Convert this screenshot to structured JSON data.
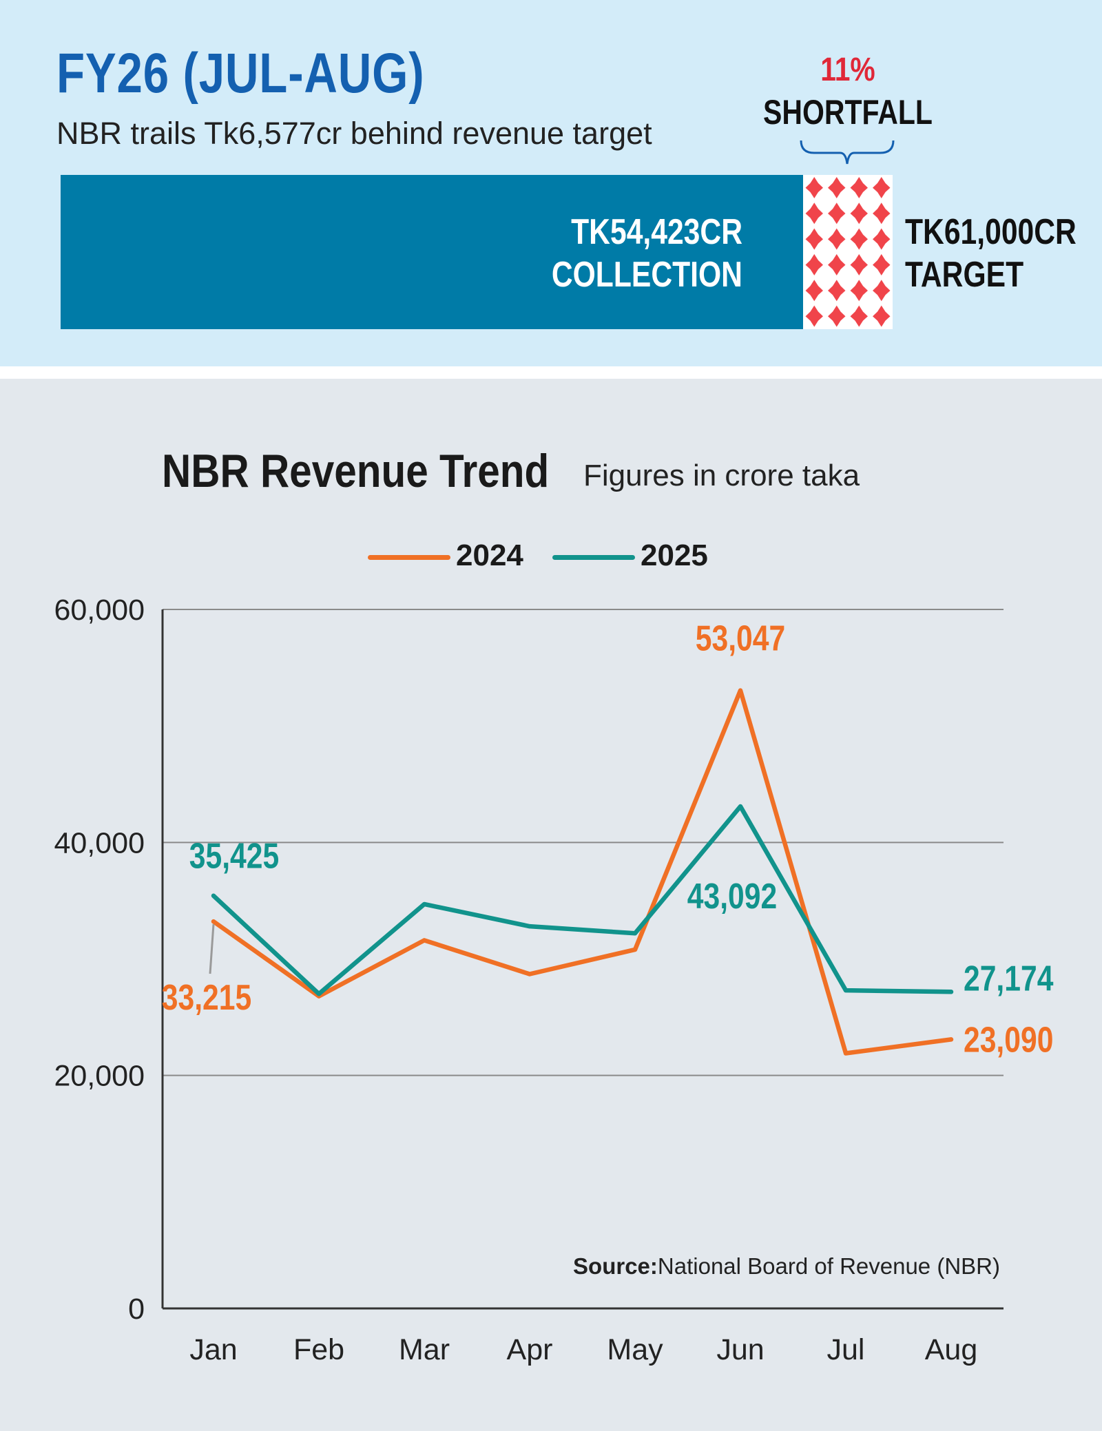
{
  "header": {
    "title": "FY26 (JUL-AUG)",
    "subtitle": "NBR trails Tk6,577cr behind revenue target",
    "collection_line1": "TK54,423CR",
    "collection_line2": "COLLECTION",
    "target_line1": "TK61,000CR",
    "target_line2": "TARGET",
    "shortfall_pct": "11%",
    "shortfall_label": "SHORTFALL",
    "collection_value": 54423,
    "target_value": 61000
  },
  "colors": {
    "collection_bar": "#007ba7",
    "shortfall_red": "#e02838",
    "series_2024": "#f07025",
    "series_2025": "#11938c",
    "title_blue": "#1460b0"
  },
  "chart_data": {
    "type": "line",
    "title": "NBR Revenue Trend",
    "subtitle": "Figures in crore taka",
    "categories": [
      "Jan",
      "Feb",
      "Mar",
      "Apr",
      "May",
      "Jun",
      "Jul",
      "Aug"
    ],
    "series": [
      {
        "name": "2024",
        "color": "#f07025",
        "values": [
          33215,
          26800,
          31600,
          28700,
          30800,
          53047,
          21900,
          23090
        ]
      },
      {
        "name": "2025",
        "color": "#11938c",
        "values": [
          35425,
          27000,
          34700,
          32800,
          32200,
          43092,
          27300,
          27174
        ]
      }
    ],
    "ylim": [
      0,
      60000
    ],
    "yticks": [
      0,
      20000,
      40000,
      60000
    ],
    "ytick_labels": [
      "0",
      "20,000",
      "40,000",
      "60,000"
    ],
    "grid": true,
    "legend": "top-center",
    "annotations": [
      {
        "series": "2025",
        "category": "Jan",
        "text": "35,425"
      },
      {
        "series": "2024",
        "category": "Jan",
        "text": "33,215"
      },
      {
        "series": "2024",
        "category": "Jun",
        "text": "53,047"
      },
      {
        "series": "2025",
        "category": "Jun",
        "text": "43,092"
      },
      {
        "series": "2025",
        "category": "Aug",
        "text": "27,174"
      },
      {
        "series": "2024",
        "category": "Aug",
        "text": "23,090"
      }
    ],
    "source_label": "Source:",
    "source_text": "National Board of Revenue (NBR)"
  }
}
